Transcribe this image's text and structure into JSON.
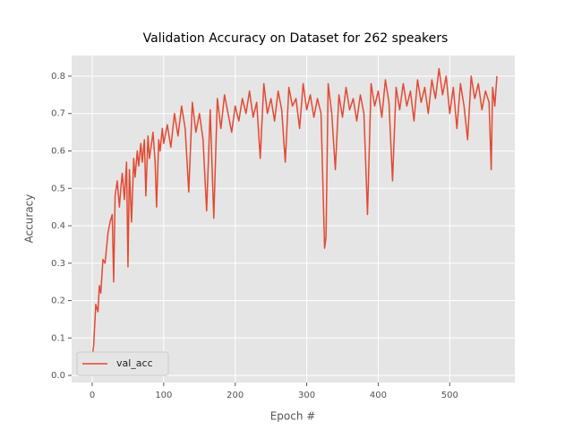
{
  "chart_data": {
    "type": "line",
    "title": "Validation Accuracy on Dataset for 262 speakers",
    "x_label": "Epoch #",
    "y_label": "Accuracy",
    "x": [
      0,
      2,
      5,
      8,
      10,
      12,
      15,
      18,
      20,
      22,
      25,
      28,
      30,
      32,
      35,
      38,
      40,
      42,
      45,
      48,
      50,
      52,
      55,
      58,
      60,
      63,
      65,
      68,
      70,
      73,
      75,
      78,
      80,
      83,
      85,
      88,
      90,
      93,
      95,
      98,
      100,
      105,
      110,
      115,
      120,
      125,
      130,
      135,
      140,
      145,
      150,
      155,
      160,
      165,
      170,
      175,
      180,
      185,
      190,
      195,
      200,
      205,
      210,
      215,
      220,
      225,
      230,
      235,
      240,
      245,
      250,
      255,
      260,
      265,
      270,
      275,
      280,
      285,
      290,
      295,
      300,
      305,
      310,
      315,
      320,
      325,
      327,
      330,
      335,
      340,
      345,
      350,
      355,
      360,
      365,
      370,
      375,
      380,
      385,
      390,
      395,
      400,
      405,
      410,
      415,
      420,
      425,
      430,
      435,
      440,
      445,
      450,
      455,
      460,
      465,
      470,
      475,
      480,
      485,
      490,
      495,
      500,
      505,
      510,
      515,
      520,
      525,
      530,
      535,
      540,
      545,
      550,
      555,
      558,
      560,
      563,
      566
    ],
    "series": [
      {
        "name": "val_acc",
        "color": "#e24a33",
        "values": [
          0.05,
          0.08,
          0.19,
          0.17,
          0.24,
          0.22,
          0.31,
          0.3,
          0.34,
          0.38,
          0.41,
          0.43,
          0.25,
          0.48,
          0.52,
          0.45,
          0.5,
          0.54,
          0.47,
          0.57,
          0.29,
          0.55,
          0.41,
          0.58,
          0.53,
          0.6,
          0.56,
          0.62,
          0.57,
          0.63,
          0.48,
          0.64,
          0.58,
          0.62,
          0.65,
          0.57,
          0.45,
          0.63,
          0.6,
          0.66,
          0.62,
          0.67,
          0.61,
          0.7,
          0.64,
          0.72,
          0.66,
          0.49,
          0.73,
          0.65,
          0.7,
          0.63,
          0.44,
          0.71,
          0.42,
          0.74,
          0.66,
          0.75,
          0.7,
          0.65,
          0.72,
          0.68,
          0.74,
          0.7,
          0.76,
          0.69,
          0.73,
          0.58,
          0.78,
          0.7,
          0.74,
          0.68,
          0.76,
          0.71,
          0.57,
          0.77,
          0.72,
          0.74,
          0.66,
          0.78,
          0.71,
          0.75,
          0.69,
          0.74,
          0.7,
          0.34,
          0.37,
          0.78,
          0.7,
          0.55,
          0.75,
          0.69,
          0.77,
          0.71,
          0.74,
          0.68,
          0.75,
          0.7,
          0.43,
          0.78,
          0.72,
          0.76,
          0.69,
          0.79,
          0.73,
          0.52,
          0.77,
          0.71,
          0.78,
          0.72,
          0.76,
          0.68,
          0.79,
          0.73,
          0.77,
          0.7,
          0.79,
          0.74,
          0.82,
          0.75,
          0.8,
          0.7,
          0.77,
          0.66,
          0.78,
          0.72,
          0.63,
          0.8,
          0.74,
          0.78,
          0.71,
          0.76,
          0.73,
          0.55,
          0.77,
          0.72,
          0.8
        ]
      }
    ],
    "xlim": [
      -28.8,
      591
    ],
    "ylim": [
      -0.019,
      0.855
    ],
    "xticks": [
      0,
      100,
      200,
      300,
      400,
      500
    ],
    "yticks": [
      {
        "value": 0,
        "label": "0.0"
      },
      0.1,
      0.2,
      0.3,
      0.4,
      0.5,
      0.6,
      0.7,
      0.8
    ],
    "grid": true,
    "legend_position": "lower left"
  }
}
